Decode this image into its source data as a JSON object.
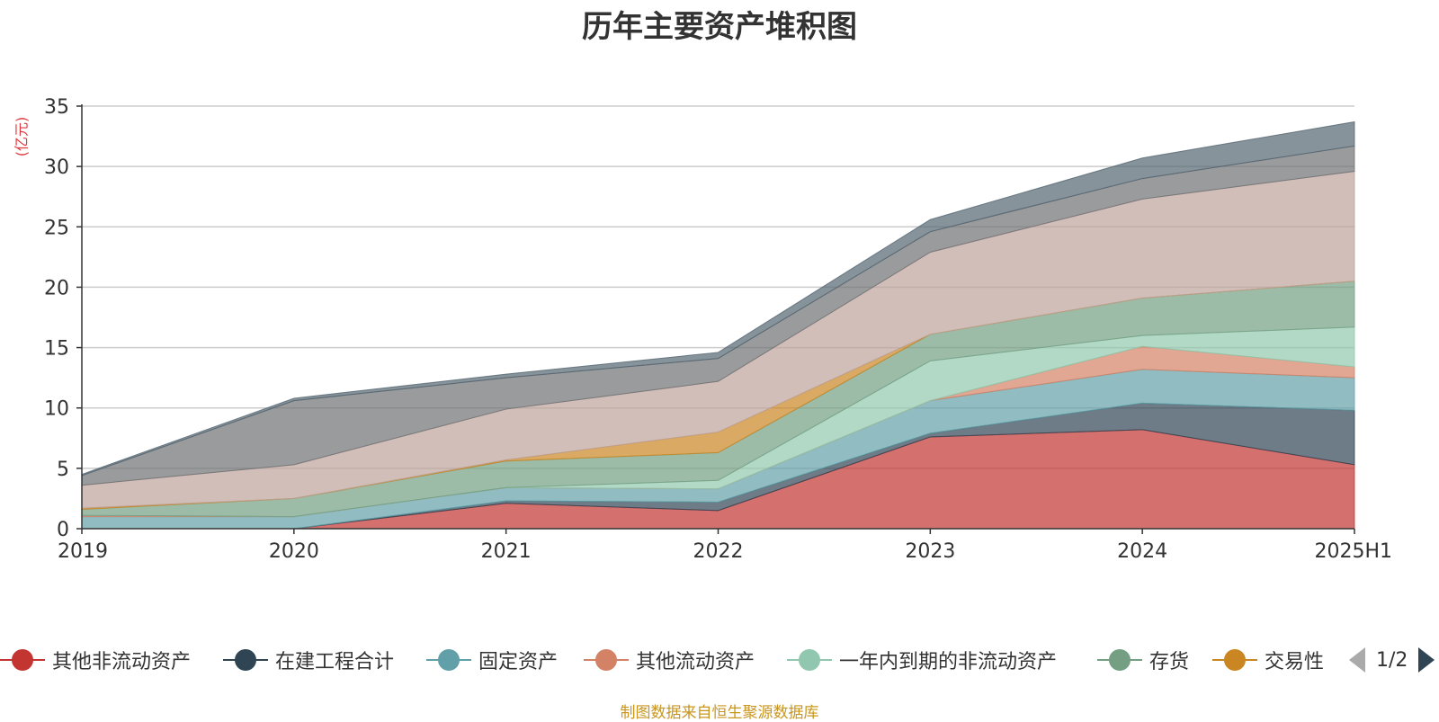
{
  "chart_data": {
    "type": "area",
    "title": "历年主要资产堆积图",
    "ylabel": "(亿元)",
    "ylim": [
      0,
      35
    ],
    "yticks": [
      0,
      5,
      10,
      15,
      20,
      25,
      30,
      35
    ],
    "categories": [
      "2019",
      "2020",
      "2021",
      "2022",
      "2023",
      "2024",
      "2025H1"
    ],
    "stacked": true,
    "grid": true,
    "legend_position": "bottom",
    "legend_page": "1/2",
    "series": [
      {
        "name": "其他非流动资产",
        "color": "#c23531",
        "values": [
          0.0,
          0.0,
          2.1,
          1.5,
          7.6,
          8.2,
          5.3
        ]
      },
      {
        "name": "在建工程合计",
        "color": "#2f4554",
        "values": [
          0.0,
          0.0,
          0.2,
          0.7,
          0.3,
          2.2,
          4.5
        ]
      },
      {
        "name": "固定资产",
        "color": "#61a0a8",
        "values": [
          1.0,
          1.0,
          1.1,
          1.1,
          2.7,
          2.8,
          2.7
        ]
      },
      {
        "name": "其他流动资产",
        "color": "#d48265",
        "values": [
          0.1,
          0.0,
          0.0,
          0.0,
          0.0,
          1.9,
          0.9
        ]
      },
      {
        "name": "一年内到期的非流动资产",
        "color": "#91c7ae",
        "values": [
          0.0,
          0.0,
          0.0,
          0.7,
          3.3,
          0.9,
          3.3
        ]
      },
      {
        "name": "存货",
        "color": "#749f83",
        "values": [
          0.5,
          1.5,
          2.2,
          2.3,
          2.2,
          3.1,
          3.8
        ]
      },
      {
        "name": "交易性",
        "color": "#ca8622",
        "values": [
          0.1,
          0.0,
          0.1,
          1.7,
          0.0,
          0.0,
          0.0
        ]
      },
      {
        "name": "",
        "color": "#bda29a",
        "values": [
          1.9,
          2.8,
          4.2,
          4.2,
          6.8,
          8.2,
          9.1
        ]
      },
      {
        "name": "",
        "color": "#6e7074",
        "values": [
          0.8,
          5.3,
          2.6,
          1.9,
          1.7,
          1.7,
          2.1
        ]
      },
      {
        "name": "",
        "color": "#546570",
        "values": [
          0.1,
          0.2,
          0.3,
          0.5,
          1.0,
          1.7,
          2.0
        ]
      }
    ]
  },
  "source_note": "制图数据来自恒生聚源数据库"
}
